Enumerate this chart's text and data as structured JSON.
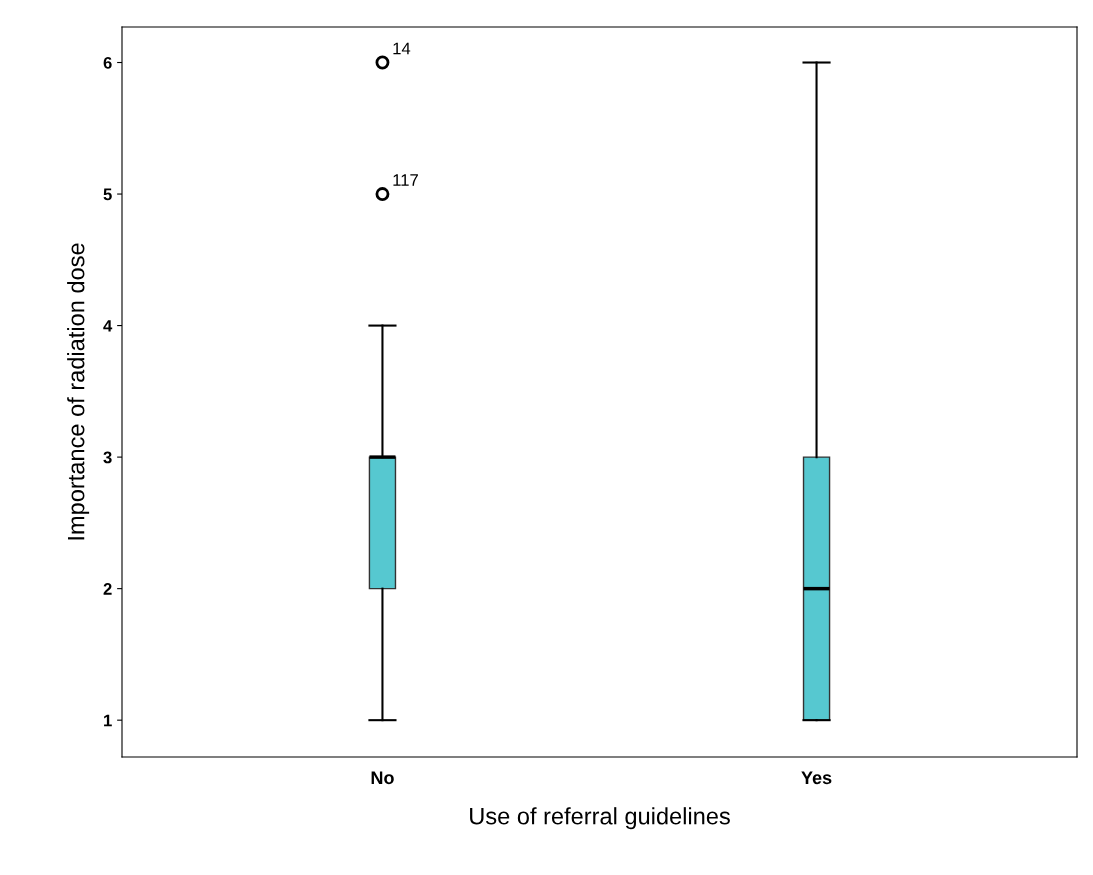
{
  "chart_data": {
    "type": "box",
    "xlabel": "Use of referral guidelines",
    "ylabel": "Importance of radiation dose",
    "categories": [
      "No",
      "Yes"
    ],
    "boxes": [
      {
        "low": 1,
        "q1": 2,
        "median": 3,
        "q3": 3,
        "high": 4,
        "outliers": [
          6,
          5
        ]
      },
      {
        "low": 1,
        "q1": 1,
        "median": 2,
        "q3": 3,
        "high": 6
      }
    ],
    "color": "#56c8d0",
    "ylim": [
      0.72,
      6.27
    ],
    "yticks": [
      1,
      2,
      3,
      4,
      5,
      6
    ],
    "grid": false,
    "legend": false,
    "annotations": [
      "14",
      "117"
    ]
  }
}
